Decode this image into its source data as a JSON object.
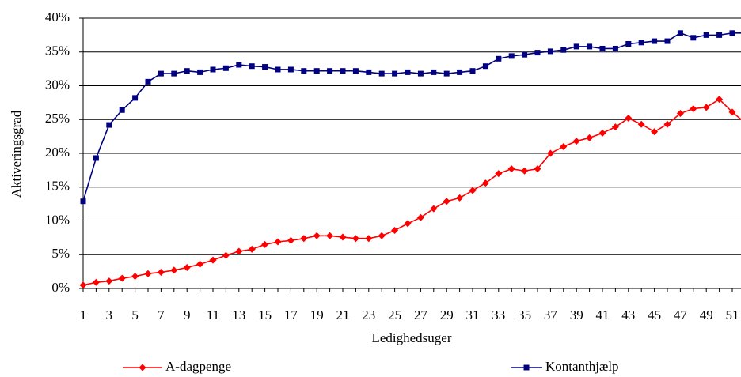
{
  "chart_data": {
    "type": "line",
    "x_label": "Ledighedsuger",
    "y_label": "Aktiveringsgrad",
    "categories": [
      "1",
      null,
      "3",
      null,
      "5",
      null,
      "7",
      null,
      "9",
      null,
      "11",
      null,
      "13",
      null,
      "15",
      null,
      "17",
      null,
      "19",
      null,
      "21",
      null,
      "23",
      null,
      "25",
      null,
      "27",
      null,
      "29",
      null,
      "31",
      null,
      "33",
      null,
      "35",
      null,
      "37",
      null,
      "39",
      null,
      "41",
      null,
      "43",
      null,
      "45",
      null,
      "47",
      null,
      "49",
      null,
      "51",
      null
    ],
    "series": [
      {
        "name": "A-dagpenge",
        "color": "#ff0000",
        "marker": "diamond",
        "values": [
          0.5,
          0.9,
          1.1,
          1.5,
          1.8,
          2.2,
          2.4,
          2.7,
          3.1,
          3.6,
          4.2,
          4.9,
          5.5,
          5.8,
          6.5,
          6.9,
          7.1,
          7.4,
          7.8,
          7.8,
          7.6,
          7.4,
          7.4,
          7.8,
          8.6,
          9.6,
          10.5,
          11.8,
          12.9,
          13.4,
          14.5,
          15.6,
          17.0,
          17.7,
          17.4,
          17.7,
          20.0,
          21.0,
          21.8,
          22.3,
          23.0,
          23.9,
          25.2,
          24.3,
          23.2,
          24.3,
          25.9,
          26.6,
          26.8,
          28.0,
          26.1,
          24.5
        ]
      },
      {
        "name": "Kontanthjælp",
        "color": "#000080",
        "marker": "square",
        "values": [
          12.9,
          19.3,
          24.2,
          26.4,
          28.2,
          30.6,
          31.8,
          31.8,
          32.2,
          32.0,
          32.4,
          32.6,
          33.1,
          32.9,
          32.8,
          32.4,
          32.4,
          32.2,
          32.2,
          32.2,
          32.2,
          32.2,
          32.0,
          31.8,
          31.8,
          32.0,
          31.8,
          32.0,
          31.8,
          32.0,
          32.2,
          32.9,
          34.0,
          34.4,
          34.6,
          34.9,
          35.1,
          35.3,
          35.8,
          35.8,
          35.5,
          35.5,
          36.2,
          36.4,
          36.6,
          36.6,
          37.8,
          37.1,
          37.5,
          37.5,
          37.8,
          37.8
        ]
      }
    ],
    "ylim": [
      0,
      40
    ],
    "yticks": [
      {
        "value": 0,
        "label": "0%"
      },
      {
        "value": 5,
        "label": "5%"
      },
      {
        "value": 10,
        "label": "10%"
      },
      {
        "value": 15,
        "label": "15%"
      },
      {
        "value": 20,
        "label": "20%"
      },
      {
        "value": 25,
        "label": "25%"
      },
      {
        "value": 30,
        "label": "30%"
      },
      {
        "value": 35,
        "label": "35%"
      },
      {
        "value": 40,
        "label": "40%"
      }
    ],
    "grid": true,
    "legend": "bottom"
  }
}
